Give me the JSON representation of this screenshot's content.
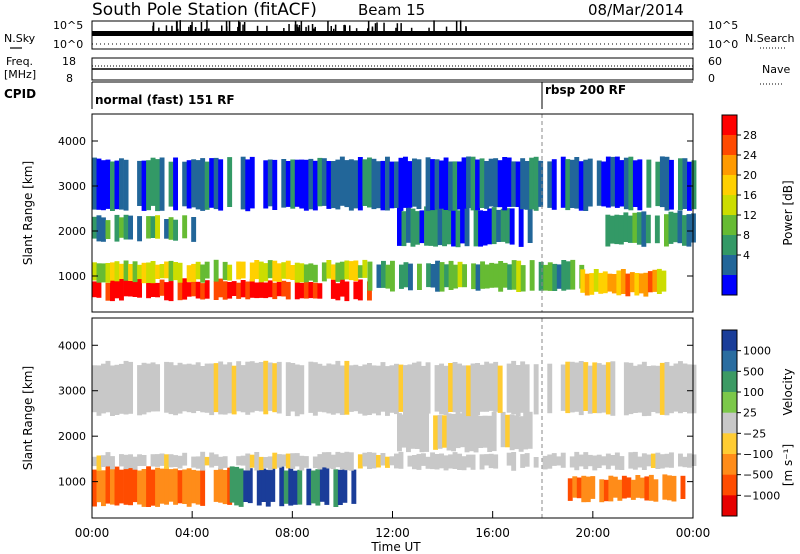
{
  "header": {
    "title": "South Pole Station (fitACF)",
    "beam": "Beam 15",
    "date": "08/Mar/2014"
  },
  "sky_panel": {
    "left_label": "N.Sky",
    "right_label": "N.Search",
    "left_ticks": [
      "10^5",
      "10^0"
    ],
    "right_ticks": [
      "10^5",
      "10^0"
    ]
  },
  "freq_panel": {
    "left_label_1": "Freq.",
    "left_label_2": "[MHz]",
    "right_label": "Nave",
    "left_ticks": [
      "18",
      "8"
    ],
    "right_ticks": [
      "60",
      "0"
    ]
  },
  "cpid_panel": {
    "label": "CPID",
    "mode_1": "normal (fast) 151 RF",
    "mode_2": "rbsp 200 RF"
  },
  "power_colorbar": {
    "label": "Power [dB]",
    "ticks": [
      "28",
      "24",
      "20",
      "16",
      "12",
      "8",
      "4"
    ],
    "colors": [
      "#ff0000",
      "#ff4a00",
      "#ff9a00",
      "#ffd000",
      "#ccdd00",
      "#66bb33",
      "#339966",
      "#226699",
      "#0000ff"
    ]
  },
  "velocity_colorbar": {
    "label": "Velocity",
    "unit": "[m s⁻¹]",
    "ticks": [
      "1000",
      "500",
      "100",
      "25",
      "−25",
      "−100",
      "−500",
      "−1000"
    ],
    "colors": [
      "#1a3d99",
      "#2a6da0",
      "#3c9a64",
      "#7cc84a",
      "#c8c8c8",
      "#ffcc33",
      "#ff8c19",
      "#ff4c00",
      "#e60000"
    ]
  },
  "chart_data": [
    {
      "type": "heatmap",
      "panel": "power",
      "xlabel": "",
      "ylabel": "Slant Range [km]",
      "xlim": [
        "00:00",
        "24:00"
      ],
      "ylim": [
        200,
        4600
      ],
      "yticks": [
        1000,
        2000,
        3000,
        4000
      ],
      "colorbar": "Power [dB]",
      "mode_change_time": "18:00",
      "bands": [
        {
          "t0": 0.0,
          "t1": 11.0,
          "r0": 500,
          "r1": 900,
          "level": 28
        },
        {
          "t0": 0.0,
          "t1": 11.0,
          "r0": 900,
          "r1": 1300,
          "level": 16
        },
        {
          "t0": 11.0,
          "t1": 19.5,
          "r0": 700,
          "r1": 1300,
          "level": 10
        },
        {
          "t0": 19.5,
          "t1": 23.0,
          "r0": 600,
          "r1": 1100,
          "level": 20
        },
        {
          "t0": 0.0,
          "t1": 4.0,
          "r0": 1800,
          "r1": 2300,
          "level": 10
        },
        {
          "t0": 12.0,
          "t1": 17.5,
          "r0": 1700,
          "r1": 2500,
          "level": 6
        },
        {
          "t0": 20.5,
          "t1": 24.0,
          "r0": 1700,
          "r1": 2400,
          "level": 8
        },
        {
          "t0": 0.0,
          "t1": 24.0,
          "r0": 2500,
          "r1": 3600,
          "level": 5
        }
      ]
    },
    {
      "type": "heatmap",
      "panel": "velocity",
      "xlabel": "Time UT",
      "ylabel": "Slant Range [km]",
      "xlim": [
        "00:00",
        "24:00"
      ],
      "xticks": [
        "00:00",
        "04:00",
        "08:00",
        "12:00",
        "16:00",
        "20:00",
        "00:00"
      ],
      "ylim": [
        200,
        4600
      ],
      "yticks": [
        1000,
        2000,
        3000,
        4000
      ],
      "colorbar": "Velocity [m s⁻¹]",
      "mode_change_time": "18:00",
      "bands": [
        {
          "t0": 0.0,
          "t1": 5.5,
          "r0": 500,
          "r1": 1300,
          "velocity": -300
        },
        {
          "t0": 5.5,
          "t1": 10.5,
          "r0": 500,
          "r1": 1300,
          "velocity": 200
        },
        {
          "t0": 0.0,
          "t1": 24.0,
          "r0": 1300,
          "r1": 1600,
          "velocity": 0
        },
        {
          "t0": 12.0,
          "t1": 17.5,
          "r0": 1700,
          "r1": 2500,
          "velocity": 0
        },
        {
          "t0": 19.0,
          "t1": 23.5,
          "r0": 600,
          "r1": 1100,
          "velocity": -400
        },
        {
          "t0": 0.0,
          "t1": 24.0,
          "r0": 2500,
          "r1": 3600,
          "velocity": 0
        }
      ]
    }
  ]
}
